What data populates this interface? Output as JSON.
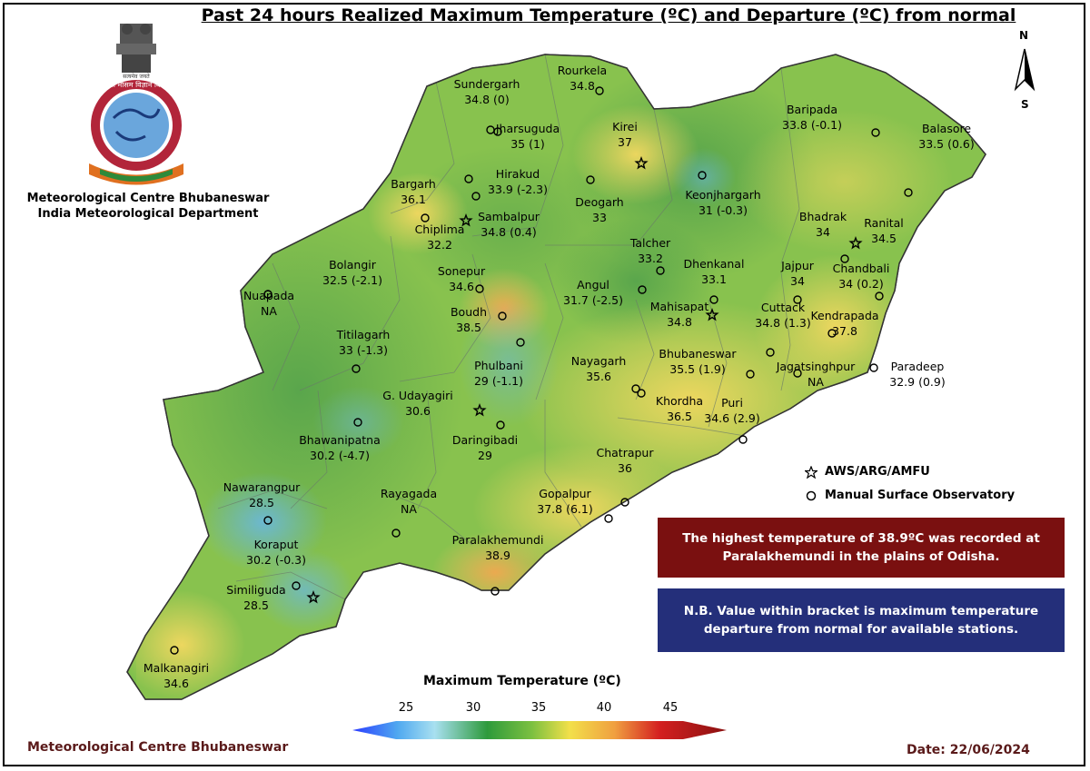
{
  "title": "Past 24 hours Realized Maximum Temperature (ºC) and Departure (ºC) from normal",
  "logo": {
    "text_top": "भारत मौसम विज्ञान विभाग",
    "text_ring": "INDIA METEOROLOGICAL DEPARTMENT",
    "icon": "imd-emblem"
  },
  "org": {
    "line1": "Meteorological Centre Bhubaneswar",
    "line2": "India Meteorological Department"
  },
  "compass": {
    "north": "N",
    "south": "S"
  },
  "map": {
    "stations": [
      {
        "name": "Sundergarh",
        "value": "34.8 (0)",
        "type": "manual"
      },
      {
        "name": "Rourkela",
        "value": "34.8",
        "type": "manual"
      },
      {
        "name": "Jharsuguda",
        "value": "35 (1)",
        "type": "manual"
      },
      {
        "name": "Kirei",
        "value": "37",
        "type": "aws"
      },
      {
        "name": "Baripada",
        "value": "33.8 (-0.1)",
        "type": "manual"
      },
      {
        "name": "Balasore",
        "value": "33.5 (0.6)",
        "type": "manual"
      },
      {
        "name": "Bargarh",
        "value": "36.1",
        "type": "manual"
      },
      {
        "name": "Hirakud",
        "value": "33.9 (-2.3)",
        "type": "manual"
      },
      {
        "name": "Deogarh",
        "value": "33",
        "type": "manual"
      },
      {
        "name": "Keonjhargarh",
        "value": "31 (-0.3)",
        "type": "manual"
      },
      {
        "name": "Ranital",
        "value": "34.5",
        "type": "aws"
      },
      {
        "name": "Chiplima",
        "value": "32.2",
        "type": "aws"
      },
      {
        "name": "Sambalpur",
        "value": "34.8 (0.4)",
        "type": "manual"
      },
      {
        "name": "Bhadrak",
        "value": "34",
        "type": "manual"
      },
      {
        "name": "Talcher",
        "value": "33.2",
        "type": "manual"
      },
      {
        "name": "Dhenkanal",
        "value": "33.1",
        "type": "manual"
      },
      {
        "name": "Jajpur",
        "value": "34",
        "type": "manual"
      },
      {
        "name": "Chandbali",
        "value": "34 (0.2)",
        "type": "manual"
      },
      {
        "name": "Bolangir",
        "value": "32.5 (-2.1)",
        "type": "manual"
      },
      {
        "name": "Sonepur",
        "value": "34.6",
        "type": "manual"
      },
      {
        "name": "Angul",
        "value": "31.7 (-2.5)",
        "type": "manual"
      },
      {
        "name": "Nuapada",
        "value": "NA",
        "type": "manual"
      },
      {
        "name": "Boudh",
        "value": "38.5",
        "type": "manual"
      },
      {
        "name": "Mahisapat",
        "value": "34.8",
        "type": "aws"
      },
      {
        "name": "Cuttack",
        "value": "34.8 (1.3)",
        "type": "manual"
      },
      {
        "name": "Kendrapada",
        "value": "37.8",
        "type": "manual"
      },
      {
        "name": "Titilagarh",
        "value": "33 (-1.3)",
        "type": "manual"
      },
      {
        "name": "Phulbani",
        "value": "29 (-1.1)",
        "type": "manual"
      },
      {
        "name": "Nayagarh",
        "value": "35.6",
        "type": "manual"
      },
      {
        "name": "Bhubaneswar",
        "value": "35.5 (1.9)",
        "type": "manual"
      },
      {
        "name": "Jagatsinghpur",
        "value": "NA",
        "type": "manual"
      },
      {
        "name": "Paradeep",
        "value": "32.9 (0.9)",
        "type": "manual"
      },
      {
        "name": "G. Udayagiri",
        "value": "30.6",
        "type": "aws"
      },
      {
        "name": "Khordha",
        "value": "36.5",
        "type": "manual"
      },
      {
        "name": "Puri",
        "value": "34.6 (2.9)",
        "type": "manual"
      },
      {
        "name": "Bhawanipatna",
        "value": "30.2 (-4.7)",
        "type": "manual"
      },
      {
        "name": "Daringibadi",
        "value": "29",
        "type": "manual"
      },
      {
        "name": "Chatrapur",
        "value": "36",
        "type": "manual"
      },
      {
        "name": "Nawarangpur",
        "value": "28.5",
        "type": "manual"
      },
      {
        "name": "Rayagada",
        "value": "NA",
        "type": "manual"
      },
      {
        "name": "Gopalpur",
        "value": "37.8 (6.1)",
        "type": "manual"
      },
      {
        "name": "Koraput",
        "value": "30.2 (-0.3)",
        "type": "manual"
      },
      {
        "name": "Paralakhemundi",
        "value": "38.9",
        "type": "manual"
      },
      {
        "name": "Similiguda",
        "value": "28.5",
        "type": "aws"
      },
      {
        "name": "Malkanagiri",
        "value": "34.6",
        "type": "manual"
      }
    ]
  },
  "legend": {
    "aws_label": "AWS/ARG/AMFU",
    "manual_label": "Manual Surface Observatory"
  },
  "highlight_box": "The highest temperature of 38.9ºC was recorded at Paralakhemundi in the plains of Odisha.",
  "note_box": "N.B. Value within bracket is maximum temperature departure from normal for available stations.",
  "colorbar": {
    "title": "Maximum Temperature (ºC)",
    "ticks": [
      "25",
      "30",
      "35",
      "40",
      "45"
    ],
    "colors": [
      "#1e3cff",
      "#6fc8f0",
      "#2e9a3c",
      "#6cbd36",
      "#f2e04a",
      "#f0a040",
      "#d42020",
      "#8a1010"
    ]
  },
  "footer": {
    "left": "Meteorological Centre Bhubaneswar",
    "date": "Date: 22/06/2024"
  }
}
